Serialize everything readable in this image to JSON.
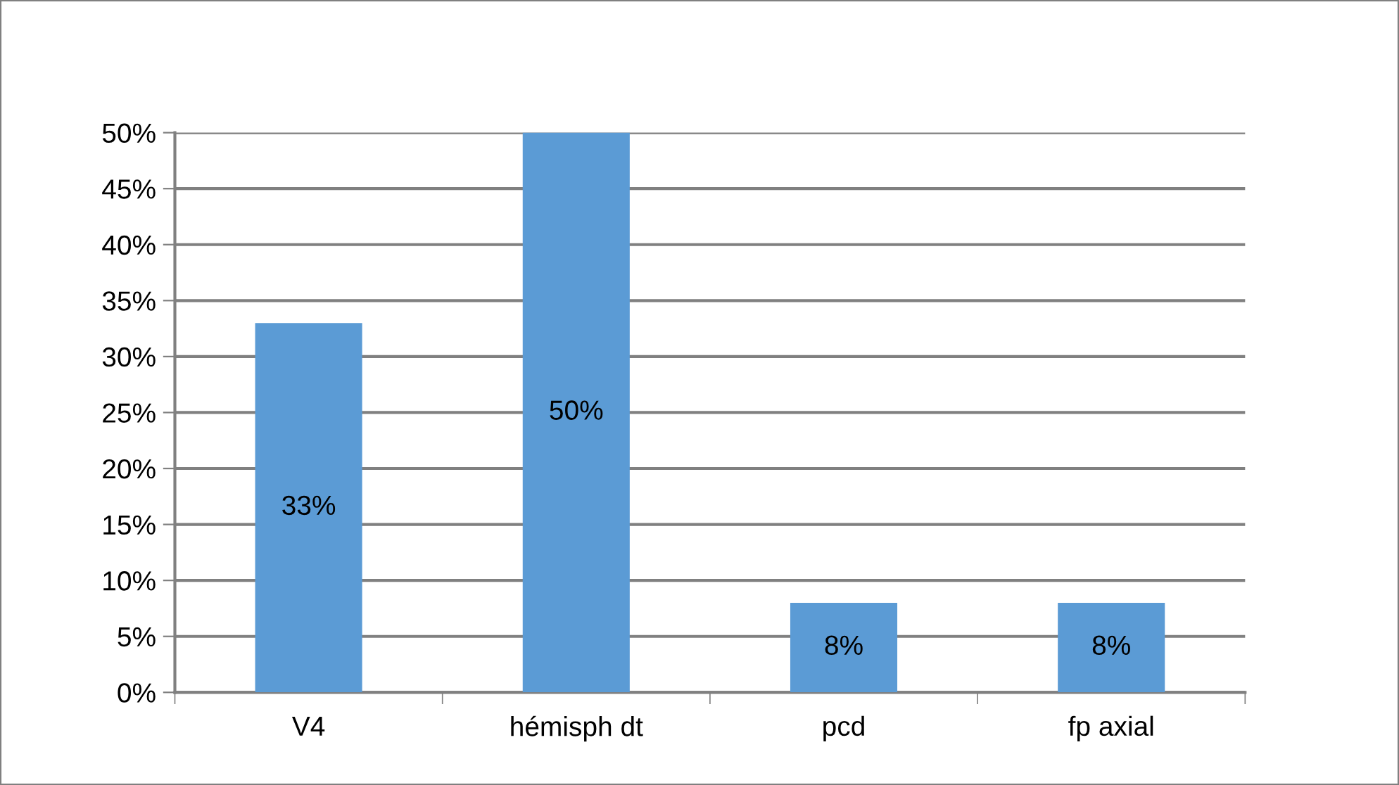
{
  "chart_data": {
    "type": "bar",
    "categories": [
      "V4",
      "hémisph dt",
      "pcd",
      "fp axial"
    ],
    "values": [
      33,
      50,
      8,
      8
    ],
    "color": "#5b9bd5",
    "value_labels": [
      "33%",
      "50%",
      "8%",
      "8%"
    ],
    "ylim": [
      0,
      50
    ],
    "yticks": [
      {
        "value": 0,
        "label": "0%"
      },
      {
        "value": 5,
        "label": "5%"
      },
      {
        "value": 10,
        "label": "10%"
      },
      {
        "value": 15,
        "label": "15%"
      },
      {
        "value": 20,
        "label": "20%"
      },
      {
        "value": 25,
        "label": "25%"
      },
      {
        "value": 30,
        "label": "30%"
      },
      {
        "value": 35,
        "label": "35%"
      },
      {
        "value": 40,
        "label": "40%"
      },
      {
        "value": 45,
        "label": "45%"
      },
      {
        "value": 50,
        "label": "50%"
      }
    ],
    "grid": "y",
    "legend": false
  }
}
